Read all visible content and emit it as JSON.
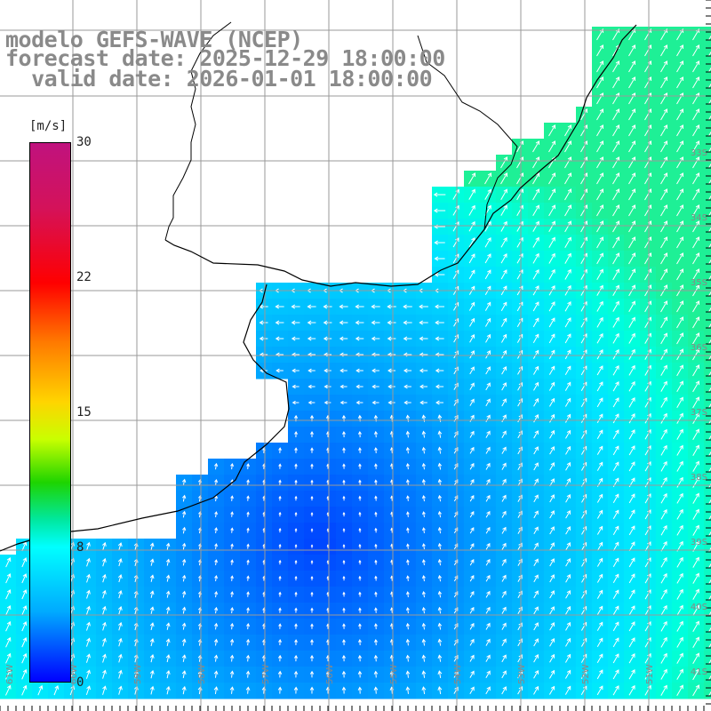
{
  "header": {
    "model": "modelo GEFS-WAVE (NCEP)",
    "forecast": "forecast date: 2025-12-29 18:00:00",
    "valid": "  valid date: 2026-01-01 18:00:00"
  },
  "legend": {
    "unit": "[m/s]",
    "ticks": [
      "30",
      "22",
      "15",
      "8",
      "0"
    ],
    "tick_values": [
      30,
      22,
      15,
      8,
      0
    ],
    "colors": [
      "#0000ff",
      "#00aaff",
      "#00ffff",
      "#00e8a0",
      "#1ed400",
      "#c9ff00",
      "#ffd400",
      "#ff7a00",
      "#ff0000",
      "#d4125a",
      "#c0127e"
    ]
  },
  "lat_labels": [
    "33S",
    "34S",
    "35S",
    "36S",
    "37S",
    "38S",
    "39S",
    "40S",
    "41S"
  ],
  "lon_labels": [
    "61W",
    "60W",
    "59W",
    "58W",
    "57W",
    "56W",
    "55W",
    "54W",
    "53W",
    "52W",
    "51W"
  ]
}
